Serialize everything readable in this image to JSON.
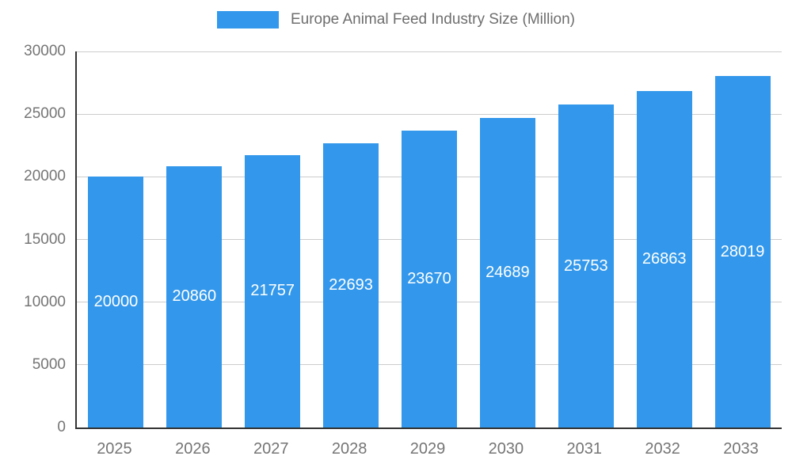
{
  "chart_data": {
    "type": "bar",
    "title": "Europe Animal Feed Industry Size (Million)",
    "categories": [
      "2025",
      "2026",
      "2027",
      "2028",
      "2029",
      "2030",
      "2031",
      "2032",
      "2033"
    ],
    "values": [
      20000,
      20860,
      21757,
      22693,
      23670,
      24689,
      25753,
      26863,
      28019
    ],
    "xlabel": "",
    "ylabel": "",
    "ylim": [
      0,
      30000
    ],
    "yticks": [
      0,
      5000,
      10000,
      15000,
      20000,
      25000,
      30000
    ],
    "grid": "horizontal",
    "legend_position": "top-center",
    "bar_color": "#3398eb",
    "value_label_color": "#ffffff",
    "axis_label_color": "#757575",
    "gridline_color": "#cccccc",
    "axis_line_color": "#333333"
  }
}
